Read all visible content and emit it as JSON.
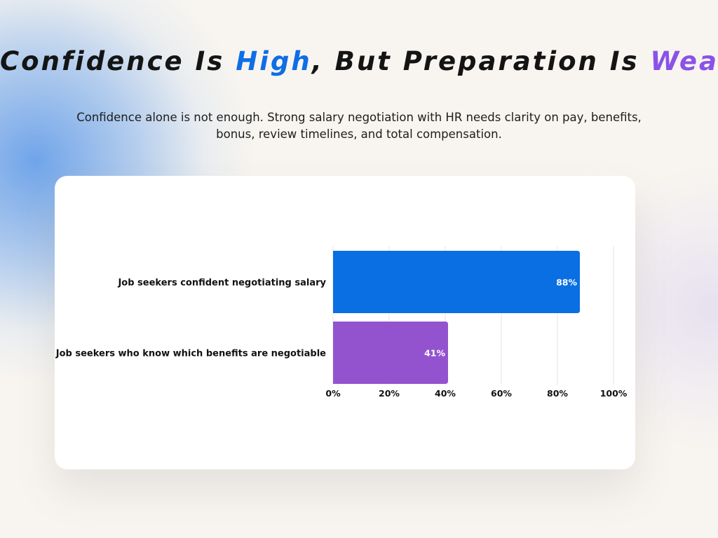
{
  "header": {
    "title_part1": "Confidence Is ",
    "title_highlight1": "High",
    "title_part2": ", But Preparation Is ",
    "title_highlight2": "Weak!",
    "subtitle": "Confidence alone is not enough. Strong salary negotiation with HR needs clarity on pay, benefits, bonus, review timelines, and total compensation."
  },
  "colors": {
    "highlight_blue": "#0f6ee6",
    "highlight_purple": "#8a52e8",
    "bar_blue": "#0a6fe3",
    "bar_purple": "#9353cf",
    "grid": "#e6e6e6"
  },
  "chart_data": {
    "type": "bar",
    "orientation": "horizontal",
    "categories": [
      "Job seekers confident negotiating salary",
      "Job seekers who know which benefits are negotiable"
    ],
    "values": [
      88,
      41
    ],
    "value_labels": [
      "88%",
      "41%"
    ],
    "bar_colors": [
      "#0a6fe3",
      "#9353cf"
    ],
    "xlim": [
      0,
      100
    ],
    "x_ticks": [
      0,
      20,
      40,
      60,
      80,
      100
    ],
    "x_tick_labels": [
      "0%",
      "20%",
      "40%",
      "60%",
      "80%",
      "100%"
    ],
    "grid": true,
    "legend": "none"
  }
}
